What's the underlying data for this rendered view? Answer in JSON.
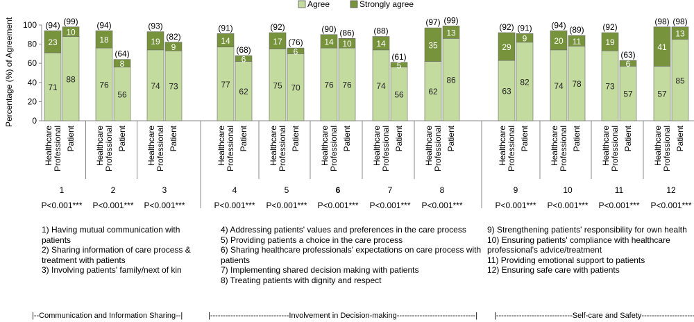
{
  "chart_data": {
    "type": "bar",
    "stacked": true,
    "ylabel": "Percentage (%) of Agreement",
    "ylim": [
      0,
      100
    ],
    "yticks": [
      "0",
      "20",
      "40",
      "60",
      "80",
      "100"
    ],
    "legend": [
      {
        "name": "Agree",
        "color": "#c4dba0"
      },
      {
        "name": "Strongly agree",
        "color": "#77933c"
      }
    ],
    "bar_labels": [
      "Healthcare Professional",
      "Patient"
    ],
    "items": [
      {
        "num": "1",
        "p": "P<0.001***",
        "hp": {
          "agree": 71,
          "strong": 23,
          "total": "(94)"
        },
        "pt": {
          "agree": 88,
          "strong": 10,
          "total": "(99)"
        }
      },
      {
        "num": "2",
        "p": "P<0.001***",
        "hp": {
          "agree": 76,
          "strong": 18,
          "total": "(94)"
        },
        "pt": {
          "agree": 56,
          "strong": 8,
          "total": "(64)"
        }
      },
      {
        "num": "3",
        "p": "P<0.001***",
        "hp": {
          "agree": 74,
          "strong": 19,
          "total": "(93)"
        },
        "pt": {
          "agree": 73,
          "strong": 9,
          "total": "(82)"
        }
      },
      {
        "num": "4",
        "p": "P<0.001***",
        "hp": {
          "agree": 77,
          "strong": 14,
          "total": "(91)"
        },
        "pt": {
          "agree": 62,
          "strong": 6,
          "total": "(68)"
        }
      },
      {
        "num": "5",
        "p": "P<0.001***",
        "hp": {
          "agree": 75,
          "strong": 17,
          "total": "(92)"
        },
        "pt": {
          "agree": 70,
          "strong": 6,
          "total": "(76)"
        }
      },
      {
        "num": "6",
        "p": "P<0.001***",
        "hp": {
          "agree": 76,
          "strong": 14,
          "total": "(90)"
        },
        "pt": {
          "agree": 76,
          "strong": 10,
          "total": "(86)"
        }
      },
      {
        "num": "7",
        "p": "P<0.001***",
        "hp": {
          "agree": 74,
          "strong": 14,
          "total": "(88)"
        },
        "pt": {
          "agree": 56,
          "strong": 5,
          "total": "(61)"
        }
      },
      {
        "num": "8",
        "p": "P<0.001***",
        "hp": {
          "agree": 62,
          "strong": 35,
          "total": "(97)"
        },
        "pt": {
          "agree": 86,
          "strong": 13,
          "total": "(99)"
        }
      },
      {
        "num": "9",
        "p": "P<0.001***",
        "hp": {
          "agree": 63,
          "strong": 29,
          "total": "(92)"
        },
        "pt": {
          "agree": 82,
          "strong": 9,
          "total": "(91)"
        }
      },
      {
        "num": "10",
        "p": "P<0.001***",
        "hp": {
          "agree": 74,
          "strong": 20,
          "total": "(94)"
        },
        "pt": {
          "agree": 78,
          "strong": 11,
          "total": "(89)"
        }
      },
      {
        "num": "11",
        "p": "P<0.001***",
        "hp": {
          "agree": 73,
          "strong": 19,
          "total": "(92)"
        },
        "pt": {
          "agree": 57,
          "strong": 6,
          "total": "(63)"
        }
      },
      {
        "num": "12",
        "p": "P<0.001***",
        "hp": {
          "agree": 57,
          "strong": 41,
          "total": "(98)"
        },
        "pt": {
          "agree": 85,
          "strong": 13,
          "total": "(98)"
        }
      }
    ],
    "groups": [
      {
        "footer": "|--Communication and Information Sharing--|",
        "notes": [
          "1) Having mutual communication with patients",
          "2) Sharing information of care process & treatment with patients",
          "3) Involving patients' family/next of kin"
        ]
      },
      {
        "footer": "|-------------------------------Involvement in Decision-making-------------------------------|",
        "notes": [
          "4) Addressing patients' values and preferences in the care process",
          "5) Providing patients a choice in the care process",
          "6) Sharing healthcare professionals' expectations on care process with patients",
          "7) Implementing shared decision making with patients",
          "8) Treating patients with dignity and respect"
        ]
      },
      {
        "footer": "|------------------------------Self-care and Safety------------------------------",
        "notes": [
          "9) Strengthening patients' responsibility for own health",
          "10) Ensuring patients' compliance with healthcare professional's advice/treatment",
          "11) Providing emotional support to patients",
          "12) Ensuring safe care with patients"
        ]
      }
    ]
  }
}
